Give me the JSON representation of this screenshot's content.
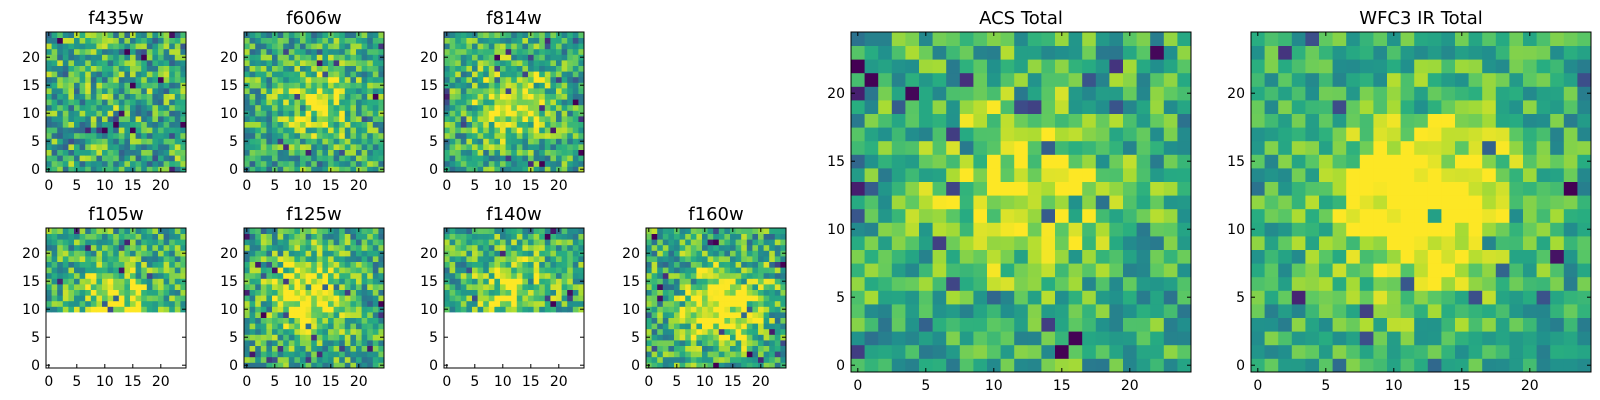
{
  "chart_data": [
    {
      "type": "heatmap",
      "title": "f435w",
      "colormap": "viridis",
      "grid_size": 25,
      "xlim": [
        0,
        24
      ],
      "ylim": [
        0,
        24
      ],
      "xticks": [
        0,
        5,
        10,
        15,
        20
      ],
      "yticks": [
        0,
        5,
        10,
        15,
        20
      ],
      "xtick_labels": [
        "0",
        "5",
        "10",
        "15",
        "20"
      ],
      "ytick_labels": [
        "0",
        "5",
        "10",
        "15",
        "20"
      ],
      "blob_center": [
        12,
        12
      ],
      "blob_strength": 0.05,
      "noise": 0.62,
      "seed": 11,
      "masked_rows_at_or_below": null
    },
    {
      "type": "heatmap",
      "title": "f606w",
      "colormap": "viridis",
      "grid_size": 25,
      "xlim": [
        0,
        24
      ],
      "ylim": [
        0,
        24
      ],
      "xticks": [
        0,
        5,
        10,
        15,
        20
      ],
      "yticks": [
        0,
        5,
        10,
        15,
        20
      ],
      "xtick_labels": [
        "0",
        "5",
        "10",
        "15",
        "20"
      ],
      "ytick_labels": [
        "0",
        "5",
        "10",
        "15",
        "20"
      ],
      "blob_center": [
        13,
        12
      ],
      "blob_strength": 0.3,
      "noise": 0.55,
      "seed": 23,
      "masked_rows_at_or_below": null
    },
    {
      "type": "heatmap",
      "title": "f814w",
      "colormap": "viridis",
      "grid_size": 25,
      "xlim": [
        0,
        24
      ],
      "ylim": [
        0,
        24
      ],
      "xticks": [
        0,
        5,
        10,
        15,
        20
      ],
      "yticks": [
        0,
        5,
        10,
        15,
        20
      ],
      "xtick_labels": [
        "0",
        "5",
        "10",
        "15",
        "20"
      ],
      "ytick_labels": [
        "0",
        "5",
        "10",
        "15",
        "20"
      ],
      "blob_center": [
        12,
        12
      ],
      "blob_strength": 0.35,
      "noise": 0.55,
      "seed": 37,
      "masked_rows_at_or_below": null
    },
    {
      "type": "heatmap",
      "title": "f105w",
      "colormap": "viridis",
      "grid_size": 25,
      "xlim": [
        0,
        24
      ],
      "ylim": [
        0,
        24
      ],
      "xticks": [
        0,
        5,
        10,
        15,
        20
      ],
      "yticks": [
        0,
        5,
        10,
        15,
        20
      ],
      "xtick_labels": [
        "0",
        "5",
        "10",
        "15",
        "20"
      ],
      "ytick_labels": [
        "0",
        "5",
        "10",
        "15",
        "20"
      ],
      "blob_center": [
        12,
        12
      ],
      "blob_strength": 0.3,
      "noise": 0.55,
      "seed": 41,
      "masked_rows_at_or_below": 9
    },
    {
      "type": "heatmap",
      "title": "f125w",
      "colormap": "viridis",
      "grid_size": 25,
      "xlim": [
        0,
        24
      ],
      "ylim": [
        0,
        24
      ],
      "xticks": [
        0,
        5,
        10,
        15,
        20
      ],
      "yticks": [
        0,
        5,
        10,
        15,
        20
      ],
      "xtick_labels": [
        "0",
        "5",
        "10",
        "15",
        "20"
      ],
      "ytick_labels": [
        "0",
        "5",
        "10",
        "15",
        "20"
      ],
      "blob_center": [
        11,
        13
      ],
      "blob_strength": 0.45,
      "noise": 0.55,
      "seed": 53,
      "masked_rows_at_or_below": null
    },
    {
      "type": "heatmap",
      "title": "f140w",
      "colormap": "viridis",
      "grid_size": 25,
      "xlim": [
        0,
        24
      ],
      "ylim": [
        0,
        24
      ],
      "xticks": [
        0,
        5,
        10,
        15,
        20
      ],
      "yticks": [
        0,
        5,
        10,
        15,
        20
      ],
      "xtick_labels": [
        "0",
        "5",
        "10",
        "15",
        "20"
      ],
      "ytick_labels": [
        "0",
        "5",
        "10",
        "15",
        "20"
      ],
      "blob_center": [
        12,
        14
      ],
      "blob_strength": 0.3,
      "noise": 0.55,
      "seed": 61,
      "masked_rows_at_or_below": 9
    },
    {
      "type": "heatmap",
      "title": "f160w",
      "colormap": "viridis",
      "grid_size": 25,
      "xlim": [
        0,
        24
      ],
      "ylim": [
        0,
        24
      ],
      "xticks": [
        0,
        5,
        10,
        15,
        20
      ],
      "yticks": [
        0,
        5,
        10,
        15,
        20
      ],
      "xtick_labels": [
        "0",
        "5",
        "10",
        "15",
        "20"
      ],
      "ytick_labels": [
        "0",
        "5",
        "10",
        "15",
        "20"
      ],
      "blob_center": [
        13,
        11
      ],
      "blob_strength": 0.55,
      "noise": 0.6,
      "seed": 71,
      "masked_rows_at_or_below": null
    },
    {
      "type": "heatmap",
      "title": "ACS Total",
      "colormap": "viridis",
      "grid_size": 25,
      "xlim": [
        0,
        24
      ],
      "ylim": [
        0,
        24
      ],
      "xticks": [
        0,
        5,
        10,
        15,
        20
      ],
      "yticks": [
        0,
        5,
        10,
        15,
        20
      ],
      "xtick_labels": [
        "0",
        "5",
        "10",
        "15",
        "20"
      ],
      "ytick_labels": [
        "0",
        "5",
        "10",
        "15",
        "20"
      ],
      "blob_center": [
        12,
        13
      ],
      "blob_strength": 0.35,
      "noise": 0.5,
      "seed": 83,
      "masked_rows_at_or_below": null
    },
    {
      "type": "heatmap",
      "title": "WFC3 IR Total",
      "colormap": "viridis",
      "grid_size": 25,
      "xlim": [
        0,
        24
      ],
      "ylim": [
        0,
        24
      ],
      "xticks": [
        0,
        5,
        10,
        15,
        20
      ],
      "yticks": [
        0,
        5,
        10,
        15,
        20
      ],
      "xtick_labels": [
        "0",
        "5",
        "10",
        "15",
        "20"
      ],
      "ytick_labels": [
        "0",
        "5",
        "10",
        "15",
        "20"
      ],
      "blob_center": [
        12,
        12
      ],
      "blob_strength": 0.6,
      "noise": 0.42,
      "seed": 97,
      "masked_rows_at_or_below": null
    }
  ]
}
